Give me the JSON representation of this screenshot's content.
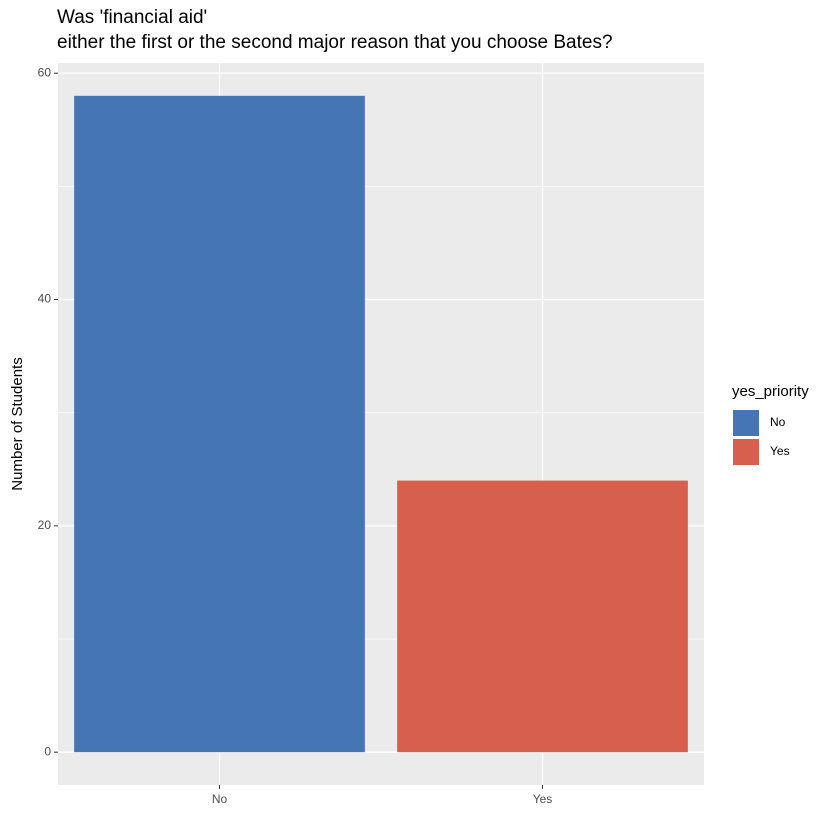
{
  "chart_data": {
    "type": "bar",
    "title": [
      "Was 'financial aid'",
      "either the first or the second major reason that you choose Bates?"
    ],
    "y_label": "Number of Students",
    "categories": [
      "No",
      "Yes"
    ],
    "values": [
      58,
      24
    ],
    "colors": [
      "#4575b4",
      "#d6604d"
    ],
    "legend_title": "yes_priority",
    "ylim": [
      -2.9,
      60.9
    ],
    "yticks": [
      0,
      20,
      40,
      60
    ],
    "minor_yticks": [
      10,
      30,
      50
    ],
    "grid": true
  }
}
